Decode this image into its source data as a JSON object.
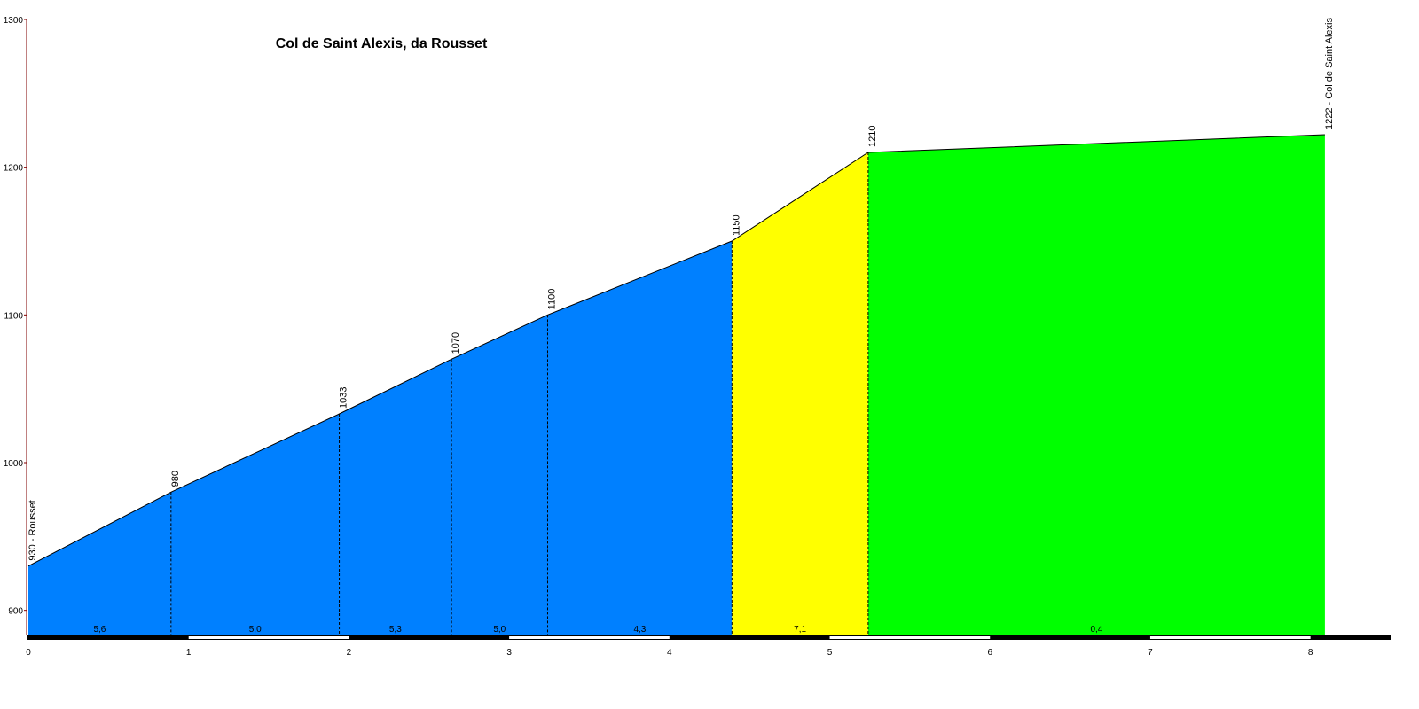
{
  "chart_data": {
    "type": "profile",
    "title": "Col de Saint Alexis, da Rousset",
    "x": [
      0,
      0.89,
      1.94,
      2.64,
      3.24,
      4.39,
      5.24,
      8.09
    ],
    "values": [
      930,
      980,
      1033,
      1070,
      1100,
      1150,
      1210,
      1222
    ],
    "value_labels": [
      "930 - Rousset",
      "980",
      "1033",
      "1070",
      "1100",
      "1150",
      "1210",
      "1222 - Col de Saint Alexis"
    ],
    "segment_labels": [
      "5,6",
      "5,0",
      "5,3",
      "5,0",
      "4,3",
      "7,1",
      "0,4"
    ],
    "segment_colors": [
      "#0080ff",
      "#0080ff",
      "#0080ff",
      "#0080ff",
      "#0080ff",
      "#ffff00",
      "#00ff00"
    ],
    "xlim": [
      0,
      8.5
    ],
    "xticks": [
      0,
      1,
      2,
      3,
      4,
      5,
      6,
      7,
      8
    ],
    "ylim": [
      883,
      1300
    ],
    "yticks": [
      900,
      1000,
      1100,
      1200,
      1300
    ]
  }
}
